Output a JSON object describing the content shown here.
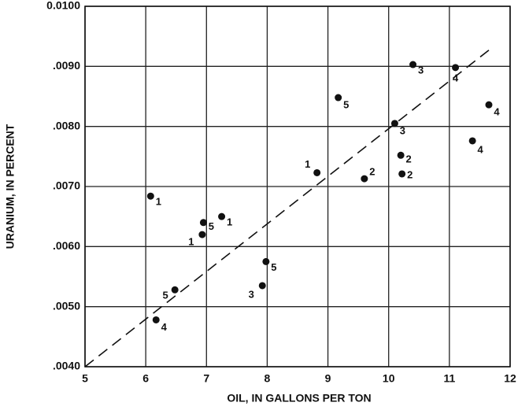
{
  "chart_data": {
    "type": "scatter",
    "x_label": "OIL, IN GALLONS PER TON",
    "y_label": "URANIUM, IN PERCENT",
    "x": [
      6.08,
      6.93,
      6.95,
      7.25,
      6.48,
      6.17,
      7.92,
      7.98,
      8.82,
      9.17,
      9.6,
      10.1,
      10.2,
      10.22,
      10.4,
      11.1,
      11.38,
      11.65
    ],
    "values": [
      0.00684,
      0.0062,
      0.0064,
      0.0065,
      0.00528,
      0.00478,
      0.00535,
      0.00575,
      0.00723,
      0.00848,
      0.00713,
      0.00805,
      0.00752,
      0.00721,
      0.00903,
      0.00898,
      0.00776,
      0.00836
    ],
    "point_labels": [
      "1",
      "1",
      "5",
      "1",
      "5",
      "4",
      "3",
      "5",
      "1",
      "5",
      "2",
      "3",
      "2",
      "2",
      "3",
      "4",
      "4",
      "4"
    ],
    "color": "#111111",
    "trend_line": {
      "x": [
        5,
        11.65
      ],
      "y": [
        0.004,
        0.00927
      ]
    },
    "xlim": [
      5,
      12
    ],
    "xticks": [
      5,
      6,
      7,
      8,
      9,
      10,
      11,
      12
    ],
    "ylim": [
      0.004,
      0.01
    ],
    "yticks": [
      {
        "value": 0.004,
        "label": ".0040"
      },
      {
        "value": 0.005,
        "label": ".0050"
      },
      {
        "value": 0.006,
        "label": ".0060"
      },
      {
        "value": 0.007,
        "label": ".0070"
      },
      {
        "value": 0.008,
        "label": ".0080"
      },
      {
        "value": 0.009,
        "label": ".0090"
      },
      {
        "value": 0.01,
        "label": "0.0100"
      }
    ],
    "grid": true
  }
}
